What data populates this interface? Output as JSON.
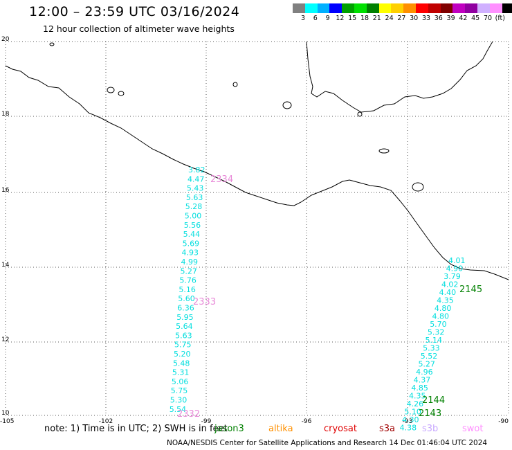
{
  "title": "12:00 – 23:59 UTC 03/16/2024",
  "subtitle": "12 hour collection of altimeter wave heights",
  "colorbar": {
    "colors": [
      "#808080",
      "#00ffff",
      "#00b0ff",
      "#0000ff",
      "#00a000",
      "#00e000",
      "#008000",
      "#ffff00",
      "#ffd000",
      "#ff9000",
      "#ff0000",
      "#c00000",
      "#800000",
      "#c000c0",
      "#9000a0",
      "#d0b0ff",
      "#ff90ff",
      "#000000"
    ],
    "labels": [
      "3",
      "6",
      "9",
      "12",
      "15",
      "18",
      "21",
      "24",
      "27",
      "30",
      "33",
      "36",
      "39",
      "42",
      "45",
      "70",
      "(ft)"
    ]
  },
  "axes": {
    "lat_ticks": [
      "20",
      "18",
      "16",
      "14",
      "12",
      "10"
    ],
    "lon_ticks": [
      "-105",
      "-102",
      "-99",
      "-96",
      "-93",
      "-90"
    ]
  },
  "tracks": [
    {
      "id": "2334",
      "label": "2334",
      "color": "#e88ad8"
    },
    {
      "id": "2333",
      "label": "2333",
      "color": "#e88ad8"
    },
    {
      "id": "2332",
      "label": "2332",
      "color": "#e88ad8"
    },
    {
      "id": "2145",
      "label": "2145",
      "color": "#008000"
    },
    {
      "id": "2144",
      "label": "2144",
      "color": "#008000"
    },
    {
      "id": "2143",
      "label": "2143",
      "color": "#008000"
    }
  ],
  "track_left_values": [
    "3.82",
    "4.47",
    "5.43",
    "5.63",
    "5.28",
    "5.00",
    "5.56",
    "5.44",
    "5.69",
    "4.93",
    "4.99",
    "5.27",
    "5.76",
    "5.16",
    "5.60",
    "6.36",
    "5.95",
    "5.64",
    "5.63",
    "5.75",
    "5.20",
    "5.48",
    "5.31",
    "5.06",
    "5.75",
    "5.30",
    "5.54"
  ],
  "track_right_values": [
    "4.01",
    "4.90",
    "3.79",
    "4.02",
    "4.40",
    "4.35",
    "4.80",
    "4.80",
    "5.70",
    "5.32",
    "5.14",
    "5.33",
    "5.52",
    "5.27",
    "4.96",
    "4.37",
    "4.85",
    "4.35",
    "4.26",
    "5.10",
    "4.30",
    "4.38"
  ],
  "note": "note: 1) Time is in UTC; 2) SWH is in feet",
  "legend": [
    {
      "label": "jason3",
      "color": "#008000"
    },
    {
      "label": "altika",
      "color": "#ff9000"
    },
    {
      "label": "cryosat",
      "color": "#e00000"
    },
    {
      "label": "s3a",
      "color": "#a00000"
    },
    {
      "label": "s3b",
      "color": "#c8a8ff"
    },
    {
      "label": "swot",
      "color": "#ff90ff"
    }
  ],
  "footer": "NOAA/NESDIS Center for Satellite Applications and Research   14 Dec 01:46:04 UTC 2024"
}
